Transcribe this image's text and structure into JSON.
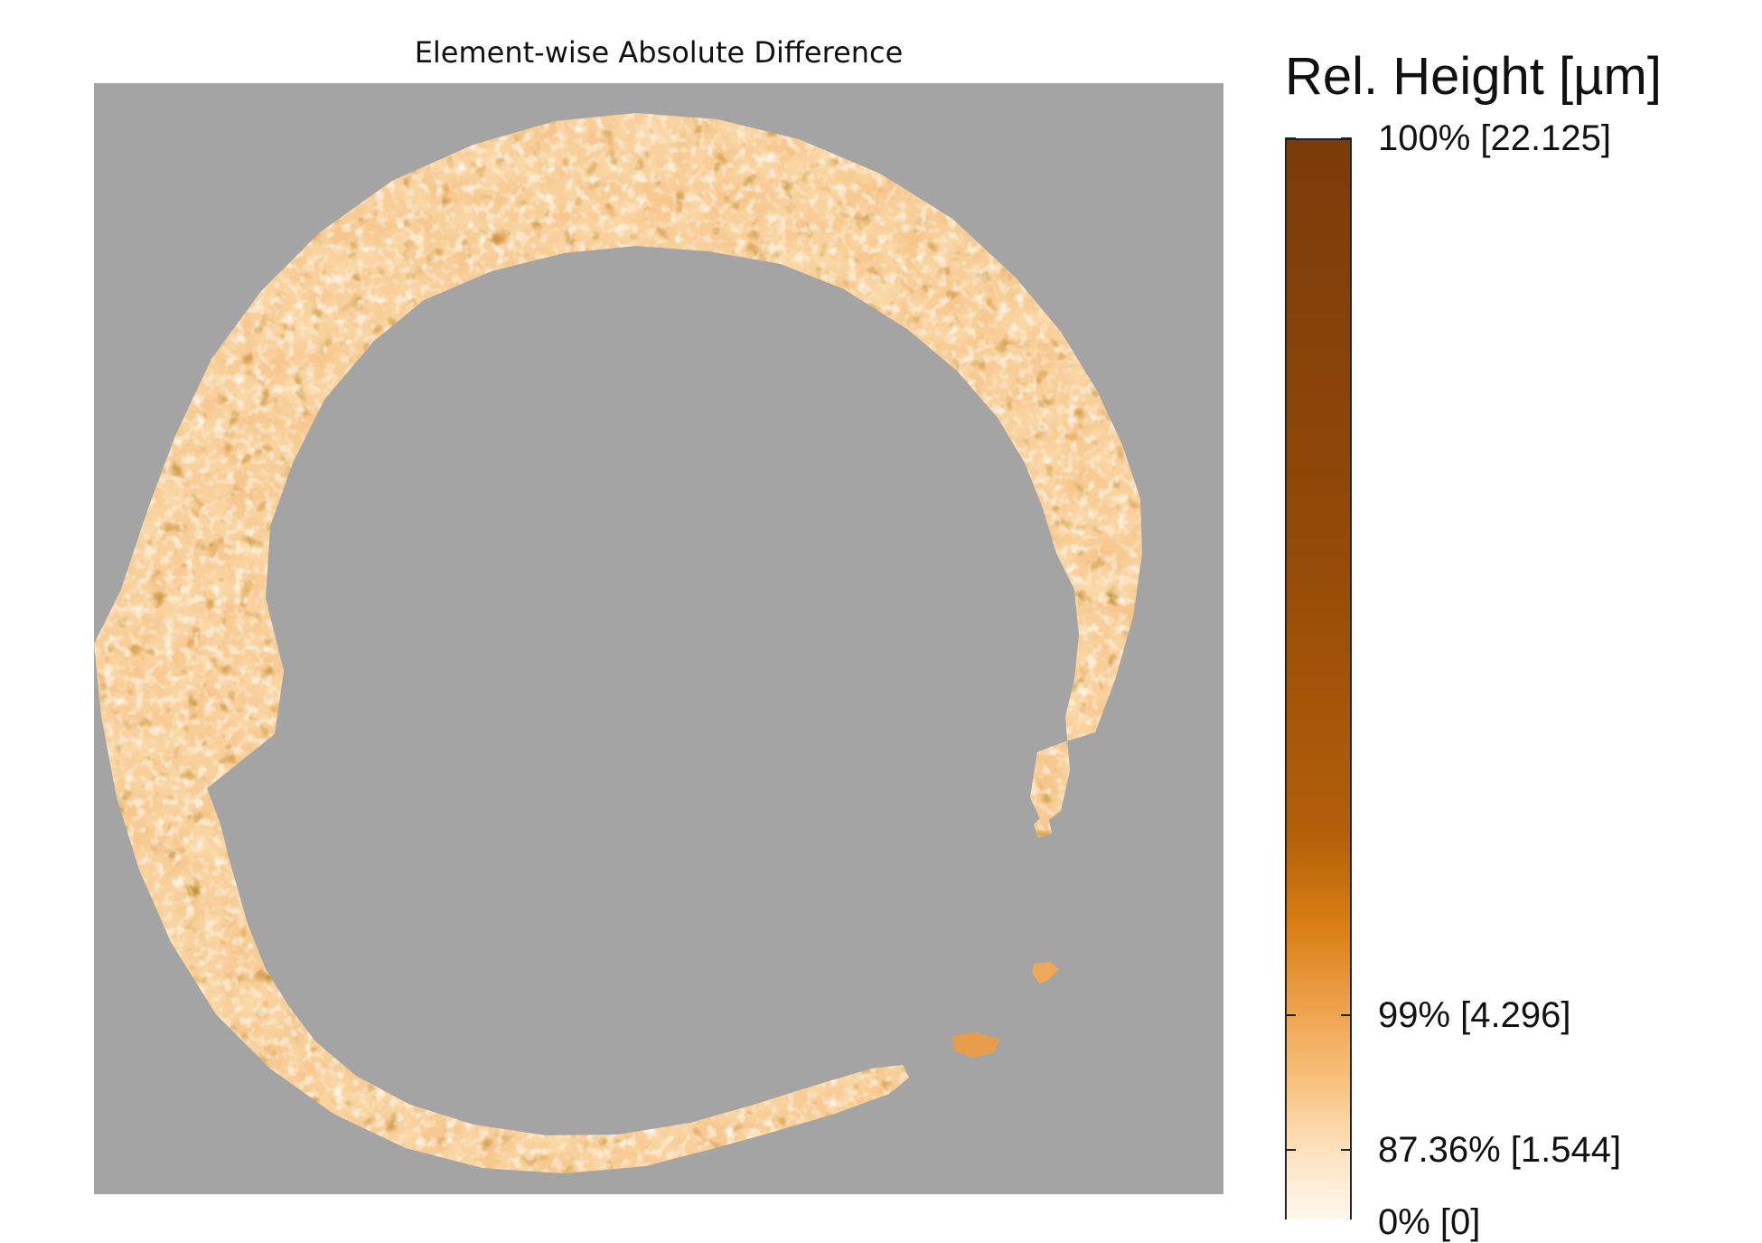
{
  "chart_data": {
    "type": "heatmap",
    "title": "Element-wise Absolute Difference",
    "background_color": "#a4a4a4",
    "colormap": [
      "#fff8ee",
      "#fde3c2",
      "#f8c07c",
      "#eda04a",
      "#d97f14",
      "#b25f0a",
      "#944a08",
      "#7b3b0a"
    ],
    "colorbar": {
      "title": "Rel. Height [µm]",
      "scale": "percentile",
      "ticks": [
        {
          "percentile": 100,
          "value": 22.125,
          "label": "100% [22.125]"
        },
        {
          "percentile": 99,
          "value": 4.296,
          "label": "99% [4.296]"
        },
        {
          "percentile": 87.36,
          "value": 1.544,
          "label": "87.36% [1.544]"
        },
        {
          "percentile": 0,
          "value": 0,
          "label": "0% [0]"
        }
      ]
    },
    "region": "ring-shaped valid area, open gap on lower right, with a few small isolated fragments"
  }
}
